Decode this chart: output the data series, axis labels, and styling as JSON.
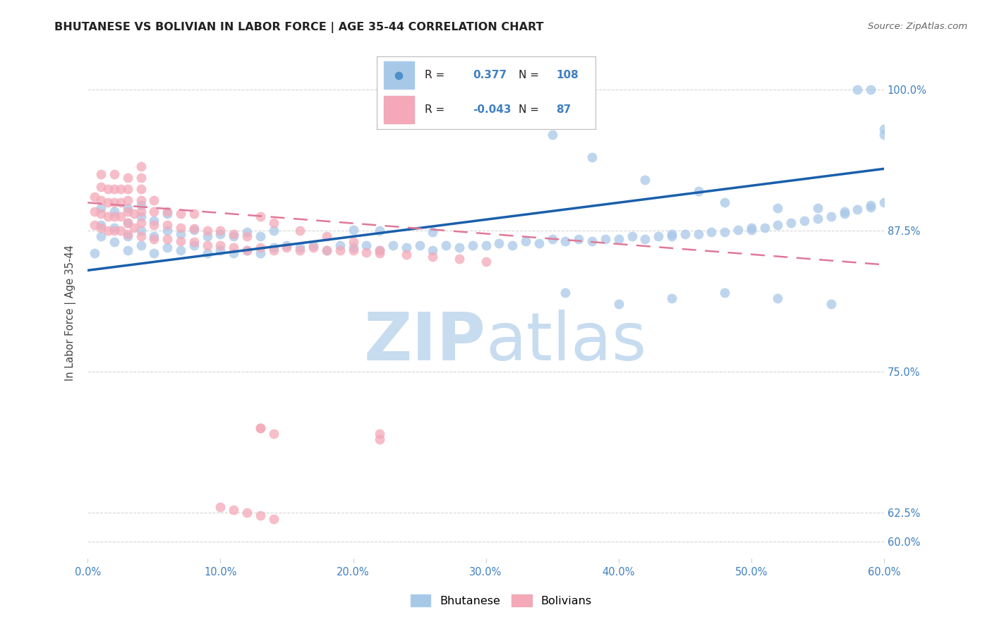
{
  "title": "BHUTANESE VS BOLIVIAN IN LABOR FORCE | AGE 35-44 CORRELATION CHART",
  "source": "Source: ZipAtlas.com",
  "ylabel": "In Labor Force | Age 35-44",
  "xlim": [
    0.0,
    0.6
  ],
  "ylim": [
    0.585,
    1.02
  ],
  "xtick_values": [
    0.0,
    0.1,
    0.2,
    0.3,
    0.4,
    0.5,
    0.6
  ],
  "xtick_labels": [
    "0.0%",
    "10.0%",
    "20.0%",
    "30.0%",
    "40.0%",
    "50.0%",
    "60.0%"
  ],
  "ytick_values": [
    0.6,
    0.625,
    0.75,
    0.875,
    1.0
  ],
  "ytick_labels": [
    "60.0%",
    "62.5%",
    "75.0%",
    "87.5%",
    "100.0%"
  ],
  "blue_R": 0.377,
  "blue_N": 108,
  "pink_R": -0.043,
  "pink_N": 87,
  "blue_color": "#A8C8E8",
  "pink_color": "#F4A8B8",
  "blue_line_color": "#1A5FAB",
  "pink_line_color": "#E07898",
  "tick_label_color": "#4080C0",
  "watermark_color": "#C8DCF0",
  "blue_x": [
    0.005,
    0.01,
    0.01,
    0.01,
    0.02,
    0.02,
    0.02,
    0.03,
    0.03,
    0.03,
    0.03,
    0.04,
    0.04,
    0.04,
    0.04,
    0.05,
    0.05,
    0.05,
    0.06,
    0.06,
    0.06,
    0.07,
    0.07,
    0.08,
    0.08,
    0.09,
    0.09,
    0.1,
    0.1,
    0.11,
    0.11,
    0.12,
    0.12,
    0.13,
    0.13,
    0.14,
    0.14,
    0.15,
    0.16,
    0.17,
    0.18,
    0.19,
    0.2,
    0.2,
    0.21,
    0.22,
    0.22,
    0.23,
    0.24,
    0.25,
    0.26,
    0.26,
    0.27,
    0.28,
    0.29,
    0.3,
    0.31,
    0.32,
    0.33,
    0.34,
    0.35,
    0.36,
    0.37,
    0.38,
    0.39,
    0.4,
    0.41,
    0.42,
    0.43,
    0.44,
    0.44,
    0.45,
    0.46,
    0.47,
    0.48,
    0.49,
    0.5,
    0.5,
    0.51,
    0.52,
    0.53,
    0.54,
    0.55,
    0.56,
    0.57,
    0.57,
    0.58,
    0.59,
    0.59,
    0.6,
    0.32,
    0.35,
    0.38,
    0.42,
    0.46,
    0.48,
    0.52,
    0.55,
    0.58,
    0.59,
    0.6,
    0.6,
    0.36,
    0.4,
    0.44,
    0.48,
    0.52,
    0.56
  ],
  "blue_y": [
    0.855,
    0.87,
    0.88,
    0.895,
    0.865,
    0.878,
    0.892,
    0.858,
    0.87,
    0.882,
    0.895,
    0.862,
    0.875,
    0.888,
    0.898,
    0.855,
    0.87,
    0.884,
    0.86,
    0.875,
    0.89,
    0.858,
    0.872,
    0.862,
    0.876,
    0.855,
    0.87,
    0.858,
    0.872,
    0.855,
    0.87,
    0.858,
    0.874,
    0.855,
    0.87,
    0.86,
    0.875,
    0.862,
    0.86,
    0.862,
    0.858,
    0.862,
    0.86,
    0.876,
    0.862,
    0.858,
    0.875,
    0.862,
    0.86,
    0.862,
    0.858,
    0.874,
    0.862,
    0.86,
    0.862,
    0.862,
    0.864,
    0.862,
    0.866,
    0.864,
    0.868,
    0.866,
    0.868,
    0.866,
    0.868,
    0.868,
    0.87,
    0.868,
    0.87,
    0.87,
    0.872,
    0.872,
    0.872,
    0.874,
    0.874,
    0.876,
    0.876,
    0.878,
    0.878,
    0.88,
    0.882,
    0.884,
    0.886,
    0.888,
    0.89,
    0.892,
    0.894,
    0.896,
    0.898,
    0.9,
    0.97,
    0.96,
    0.94,
    0.92,
    0.91,
    0.9,
    0.895,
    0.895,
    1.0,
    1.0,
    0.965,
    0.96,
    0.82,
    0.81,
    0.815,
    0.82,
    0.815,
    0.81
  ],
  "pink_x": [
    0.005,
    0.005,
    0.005,
    0.01,
    0.01,
    0.01,
    0.01,
    0.01,
    0.015,
    0.015,
    0.015,
    0.015,
    0.02,
    0.02,
    0.02,
    0.02,
    0.02,
    0.025,
    0.025,
    0.025,
    0.025,
    0.03,
    0.03,
    0.03,
    0.03,
    0.03,
    0.03,
    0.035,
    0.035,
    0.04,
    0.04,
    0.04,
    0.04,
    0.04,
    0.04,
    0.04,
    0.05,
    0.05,
    0.05,
    0.05,
    0.06,
    0.06,
    0.06,
    0.07,
    0.07,
    0.07,
    0.08,
    0.08,
    0.08,
    0.09,
    0.09,
    0.1,
    0.1,
    0.11,
    0.11,
    0.12,
    0.12,
    0.13,
    0.14,
    0.15,
    0.16,
    0.17,
    0.18,
    0.19,
    0.2,
    0.21,
    0.22,
    0.13,
    0.14,
    0.16,
    0.18,
    0.2,
    0.22,
    0.24,
    0.26,
    0.28,
    0.3,
    0.13,
    0.22,
    0.13,
    0.14,
    0.22,
    0.1,
    0.11,
    0.12,
    0.13,
    0.14
  ],
  "pink_y": [
    0.88,
    0.892,
    0.905,
    0.878,
    0.89,
    0.902,
    0.914,
    0.925,
    0.875,
    0.888,
    0.9,
    0.912,
    0.875,
    0.888,
    0.9,
    0.912,
    0.925,
    0.875,
    0.888,
    0.9,
    0.912,
    0.872,
    0.882,
    0.892,
    0.902,
    0.912,
    0.922,
    0.878,
    0.89,
    0.87,
    0.882,
    0.892,
    0.902,
    0.912,
    0.922,
    0.932,
    0.868,
    0.88,
    0.892,
    0.902,
    0.868,
    0.88,
    0.892,
    0.866,
    0.878,
    0.89,
    0.865,
    0.877,
    0.89,
    0.862,
    0.875,
    0.862,
    0.875,
    0.86,
    0.872,
    0.858,
    0.87,
    0.86,
    0.858,
    0.86,
    0.858,
    0.86,
    0.858,
    0.858,
    0.858,
    0.856,
    0.855,
    0.888,
    0.882,
    0.875,
    0.87,
    0.865,
    0.858,
    0.854,
    0.852,
    0.85,
    0.848,
    0.7,
    0.695,
    0.7,
    0.695,
    0.69,
    0.63,
    0.628,
    0.625,
    0.623,
    0.62
  ]
}
